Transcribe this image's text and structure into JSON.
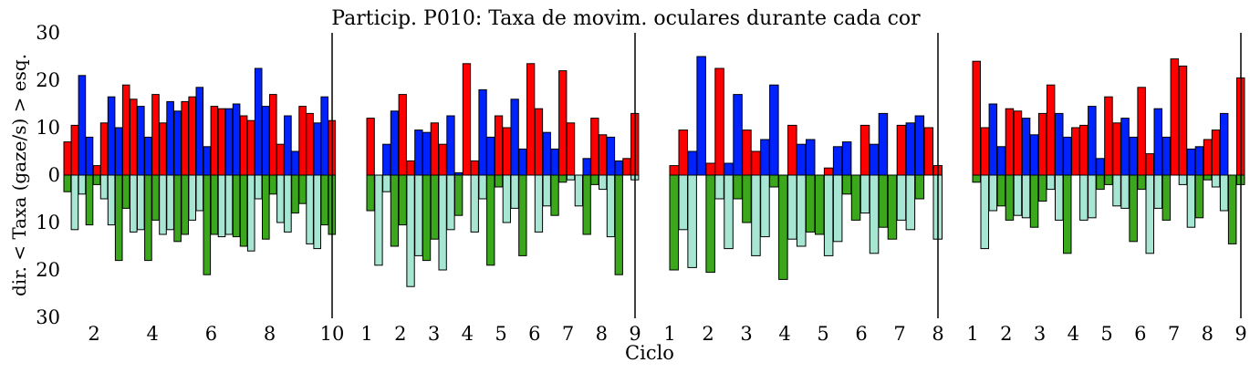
{
  "chart_data": {
    "type": "bar",
    "title": "Particip. P010: Taxa de movim. oculares durante cada cor",
    "xlabel": "Ciclo",
    "ylabel": "dir. < Taxa (gaze/s) > esq.",
    "ylim": [
      -30,
      30
    ],
    "yticks": [
      30,
      20,
      10,
      0,
      10,
      20,
      30
    ],
    "grid": false,
    "colors": {
      "red": "#ff0000",
      "blue": "#0022ff",
      "green": "#3aa81a",
      "teal": "#a8e6d4",
      "edge": "#000000"
    },
    "series_order": [
      "red (esq.)",
      "red (esq.)",
      "blue (esq.)",
      "blue (esq.)"
    ],
    "panels": [
      {
        "xticks": [
          "2",
          "4",
          "6",
          "8",
          "10"
        ],
        "xrange": [
          1,
          10
        ],
        "cycles": [
          {
            "up": [
              7,
              10.5,
              21,
              8
            ],
            "down": [
              3.5,
              11.5,
              4,
              10.5
            ]
          },
          {
            "up": [
              2,
              11,
              16.5,
              10
            ],
            "down": [
              2,
              5,
              10.5,
              18
            ]
          },
          {
            "up": [
              19,
              16,
              14.5,
              8
            ],
            "down": [
              7,
              12,
              11.5,
              18
            ]
          },
          {
            "up": [
              17,
              11,
              15.5,
              13.5
            ],
            "down": [
              9.5,
              12.5,
              11.5,
              14
            ]
          },
          {
            "up": [
              15.5,
              16.5,
              18.5,
              6
            ],
            "down": [
              12.5,
              9.5,
              7.5,
              21
            ]
          },
          {
            "up": [
              14.5,
              14,
              14,
              15
            ],
            "down": [
              12.5,
              13,
              12.5,
              13
            ]
          },
          {
            "up": [
              12.5,
              11.5,
              22.5,
              14.5
            ],
            "down": [
              15,
              16,
              5,
              13.5
            ]
          },
          {
            "up": [
              17,
              6.5,
              12.5,
              5
            ],
            "down": [
              4,
              10,
              12,
              8
            ]
          },
          {
            "up": [
              14.5,
              13,
              11,
              16.5
            ],
            "down": [
              6,
              14.5,
              15.5,
              10.5
            ]
          },
          {
            "up": [
              11.5
            ],
            "down": [
              12.5
            ]
          }
        ]
      },
      {
        "xticks": [
          "1",
          "2",
          "3",
          "4",
          "5",
          "6",
          "7",
          "8",
          "9"
        ],
        "xrange": [
          1,
          9
        ],
        "cycles": [
          {
            "up": [
              12,
              0,
              6.5,
              13.5
            ],
            "down": [
              7.5,
              19,
              3.5,
              15
            ]
          },
          {
            "up": [
              17,
              3,
              9.5,
              9
            ],
            "down": [
              10.5,
              23.5,
              17,
              18
            ]
          },
          {
            "up": [
              11,
              6.5,
              12.5,
              0.5
            ],
            "down": [
              13.5,
              20,
              11.5,
              8.5
            ]
          },
          {
            "up": [
              23.5,
              3,
              18,
              8
            ],
            "down": [
              0,
              12,
              5,
              19
            ]
          },
          {
            "up": [
              12.5,
              10,
              16,
              5.5
            ],
            "down": [
              2.5,
              10,
              7,
              17
            ]
          },
          {
            "up": [
              23.5,
              14,
              9,
              5.5
            ],
            "down": [
              0,
              12,
              6.5,
              8.5
            ]
          },
          {
            "up": [
              22,
              11,
              0,
              3.5
            ],
            "down": [
              1.5,
              1,
              6.5,
              12.5
            ]
          },
          {
            "up": [
              12,
              8.5,
              8,
              3
            ],
            "down": [
              2,
              3,
              13,
              21
            ]
          },
          {
            "up": [
              3.5,
              13
            ],
            "down": [
              0,
              1
            ]
          }
        ]
      },
      {
        "xticks": [
          "1",
          "2",
          "3",
          "4",
          "5",
          "6",
          "7",
          "8"
        ],
        "xrange": [
          1,
          8
        ],
        "cycles": [
          {
            "up": [
              2,
              9.5,
              5,
              25
            ],
            "down": [
              20,
              11.5,
              19.5,
              0
            ]
          },
          {
            "up": [
              2.5,
              22.5,
              2.5,
              17
            ],
            "down": [
              20.5,
              5,
              15.5,
              5
            ]
          },
          {
            "up": [
              9.5,
              5,
              7.5,
              19
            ],
            "down": [
              10,
              17,
              13,
              2.5
            ]
          },
          {
            "up": [
              0,
              10.5,
              6.5,
              7.5
            ],
            "down": [
              22,
              13.5,
              15,
              12
            ]
          },
          {
            "up": [
              0,
              1.5,
              6,
              7
            ],
            "down": [
              12.5,
              17,
              14,
              4
            ]
          },
          {
            "up": [
              0,
              10.5,
              6.5,
              13
            ],
            "down": [
              9.5,
              8,
              16.5,
              11
            ]
          },
          {
            "up": [
              0,
              10.5,
              11,
              12.5
            ],
            "down": [
              13.5,
              9.5,
              11.5,
              5
            ]
          },
          {
            "up": [
              10,
              2
            ],
            "down": [
              0,
              13.5
            ]
          }
        ]
      },
      {
        "xticks": [
          "1",
          "2",
          "3",
          "4",
          "5",
          "6",
          "7",
          "8",
          "9"
        ],
        "xrange": [
          1,
          9
        ],
        "cycles": [
          {
            "up": [
              24,
              10,
              15,
              6
            ],
            "down": [
              1.5,
              15.5,
              7.5,
              6.5
            ]
          },
          {
            "up": [
              14,
              13.5,
              12,
              8.5
            ],
            "down": [
              9.5,
              8.5,
              9,
              11
            ]
          },
          {
            "up": [
              13,
              19,
              13,
              8
            ],
            "down": [
              5.5,
              3,
              9.5,
              16.5
            ]
          },
          {
            "up": [
              10,
              10.5,
              14.5,
              3.5
            ],
            "down": [
              0,
              9.5,
              9,
              3
            ]
          },
          {
            "up": [
              16.5,
              11,
              12,
              8
            ],
            "down": [
              2,
              6.5,
              7,
              14
            ]
          },
          {
            "up": [
              18.5,
              4.5,
              14,
              8
            ],
            "down": [
              3,
              16.5,
              7,
              9.5
            ]
          },
          {
            "up": [
              24.5,
              23,
              5.5,
              6
            ],
            "down": [
              0,
              2,
              11,
              9
            ]
          },
          {
            "up": [
              7.5,
              9.5,
              13,
              0
            ],
            "down": [
              1,
              2.5,
              7.5,
              14.5
            ]
          },
          {
            "up": [
              20.5
            ],
            "down": [
              2
            ]
          }
        ]
      }
    ]
  }
}
